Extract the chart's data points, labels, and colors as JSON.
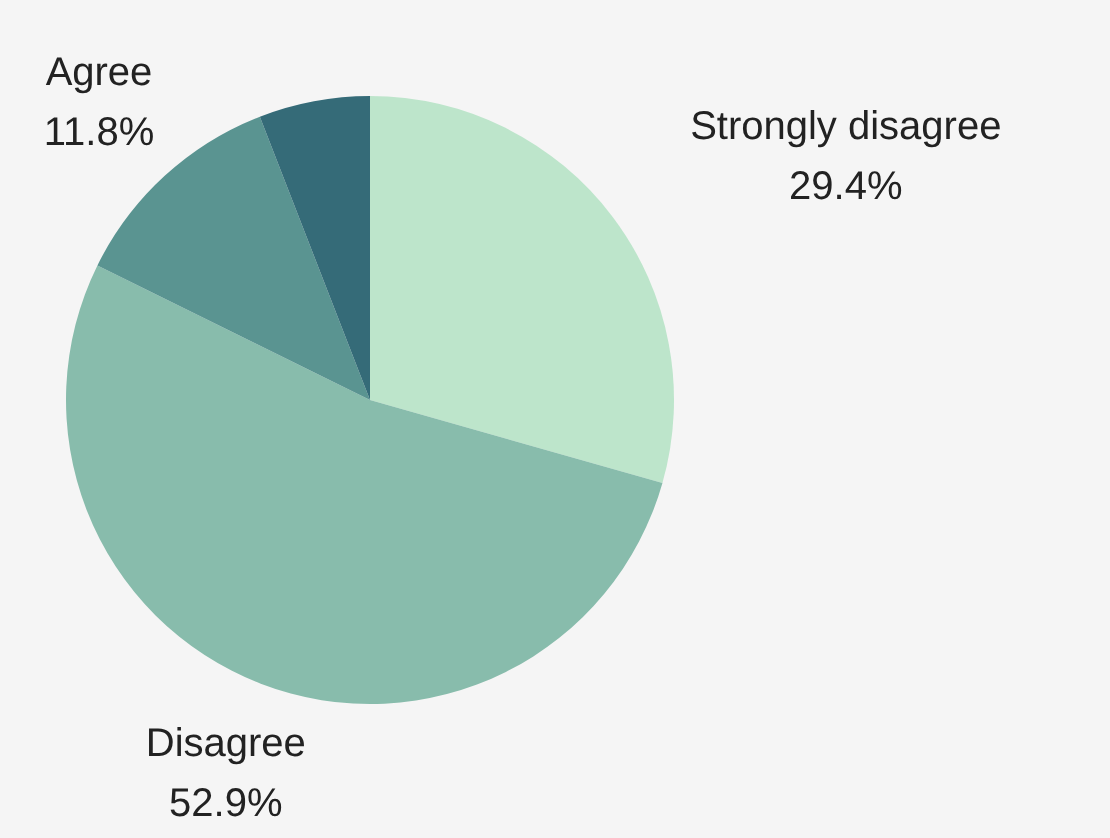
{
  "chart_data": {
    "type": "pie",
    "categories": [
      "Strongly disagree",
      "Disagree",
      "Agree",
      null
    ],
    "values": [
      29.4,
      52.9,
      11.8,
      5.9
    ],
    "value_labels": [
      "29.4%",
      "52.9%",
      "11.8%",
      null
    ],
    "colors": [
      "#bde5cb",
      "#88bcac",
      "#5a9491",
      "#356b78"
    ],
    "legend": false
  }
}
